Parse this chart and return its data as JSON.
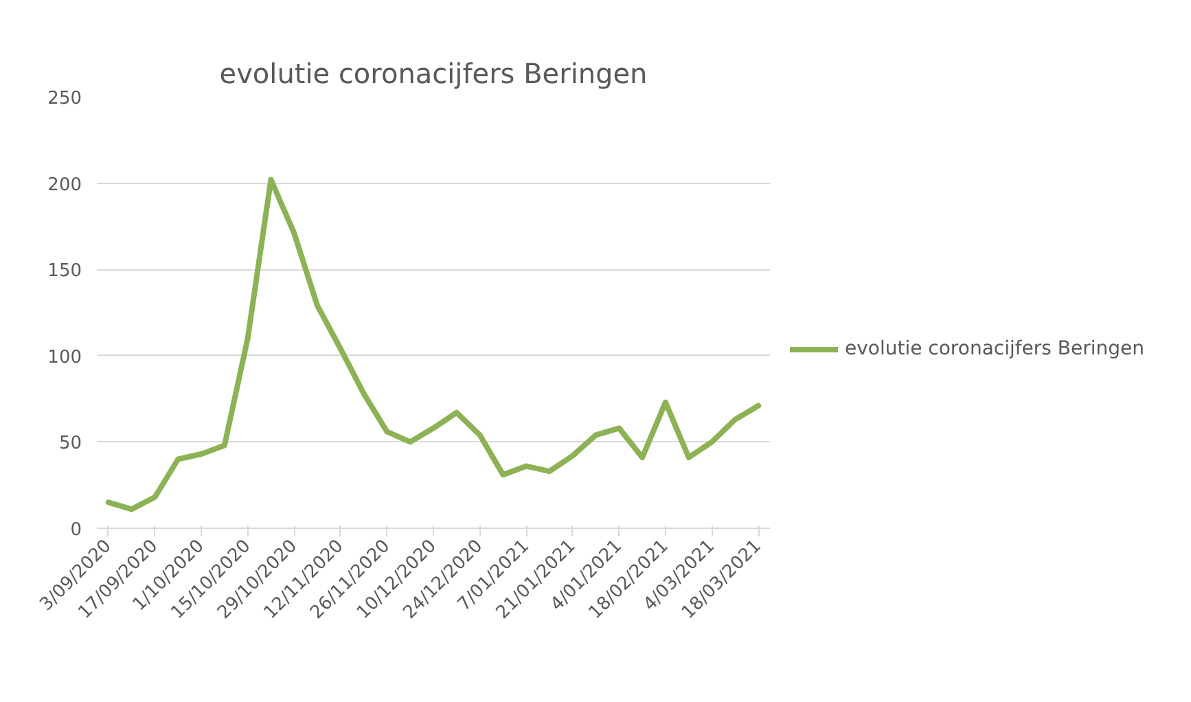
{
  "chart_data": {
    "type": "line",
    "title": "evolutie coronacijfers Beringen",
    "categories": [
      "3/09/2020",
      null,
      "17/09/2020",
      null,
      "1/10/2020",
      null,
      "15/10/2020",
      null,
      "29/10/2020",
      null,
      "12/11/2020",
      null,
      "26/11/2020",
      null,
      "10/12/2020",
      null,
      "24/12/2020",
      null,
      "7/01/2021",
      null,
      "21/01/2021",
      null,
      "4/01/2021",
      null,
      "18/02/2021",
      null,
      "4/03/2021",
      null,
      "18/03/2021"
    ],
    "series": [
      {
        "name": "evolutie coronacijfers Beringen",
        "color": "#8db255",
        "values": [
          15,
          11,
          18,
          40,
          43,
          48,
          110,
          202,
          171,
          129,
          104,
          78,
          56,
          50,
          58,
          67,
          54,
          31,
          36,
          33,
          42,
          54,
          58,
          41,
          73,
          41,
          50,
          63,
          71
        ]
      }
    ],
    "ylim": [
      0,
      250
    ],
    "yticks": [
      0,
      50,
      100,
      150,
      200,
      250
    ],
    "grid": "y",
    "legend": "right"
  }
}
